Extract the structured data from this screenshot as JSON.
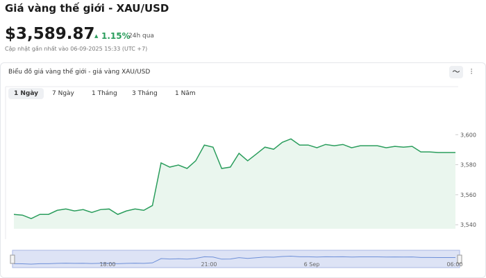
{
  "header": {
    "title": "Giá vàng thế giới - XAU/USD",
    "price": "$3,589.87",
    "change": "1.15%",
    "change_period": "24h qua",
    "updated": "Cập nhật gần nhất vào 06-09-2025 15:33 (UTC +7)"
  },
  "card_title": "Biểu đồ giá vàng thế giới - giá vàng XAU/USD",
  "tabs": [
    "1 Ngày",
    "7 Ngày",
    "1 Tháng",
    "3 Tháng",
    "1 Năm"
  ],
  "navigator_labels": [
    "18:00",
    "21:00",
    "6 Sep",
    "06:00"
  ],
  "chart_data": {
    "type": "area",
    "color": "#2a9d5c",
    "values": [
      3546.9,
      3546.4,
      3544.1,
      3546.9,
      3546.9,
      3549.6,
      3550.5,
      3549.2,
      3550.1,
      3548.2,
      3550.1,
      3550.5,
      3546.9,
      3549.2,
      3550.5,
      3549.6,
      3552.8,
      3581.2,
      3578.4,
      3579.8,
      3577.5,
      3582.6,
      3593.1,
      3591.7,
      3577.5,
      3578.4,
      3587.6,
      3582.6,
      3587.1,
      3591.7,
      3590.3,
      3594.9,
      3597.2,
      3593.1,
      3593.1,
      3591.3,
      3593.5,
      3592.6,
      3593.5,
      3591.3,
      3592.6,
      3592.6,
      3592.6,
      3591.3,
      3592.2,
      3591.7,
      3592.2,
      3588.5,
      3588.5,
      3588.1,
      3588.1,
      3588.1
    ],
    "ylim": [
      3535,
      3632
    ],
    "yticks": [
      {
        "value": 3540,
        "label": "3,540"
      },
      {
        "value": 3560,
        "label": "3,560"
      },
      {
        "value": 3580,
        "label": "3,580"
      },
      {
        "value": 3600,
        "label": "3,600"
      }
    ]
  }
}
